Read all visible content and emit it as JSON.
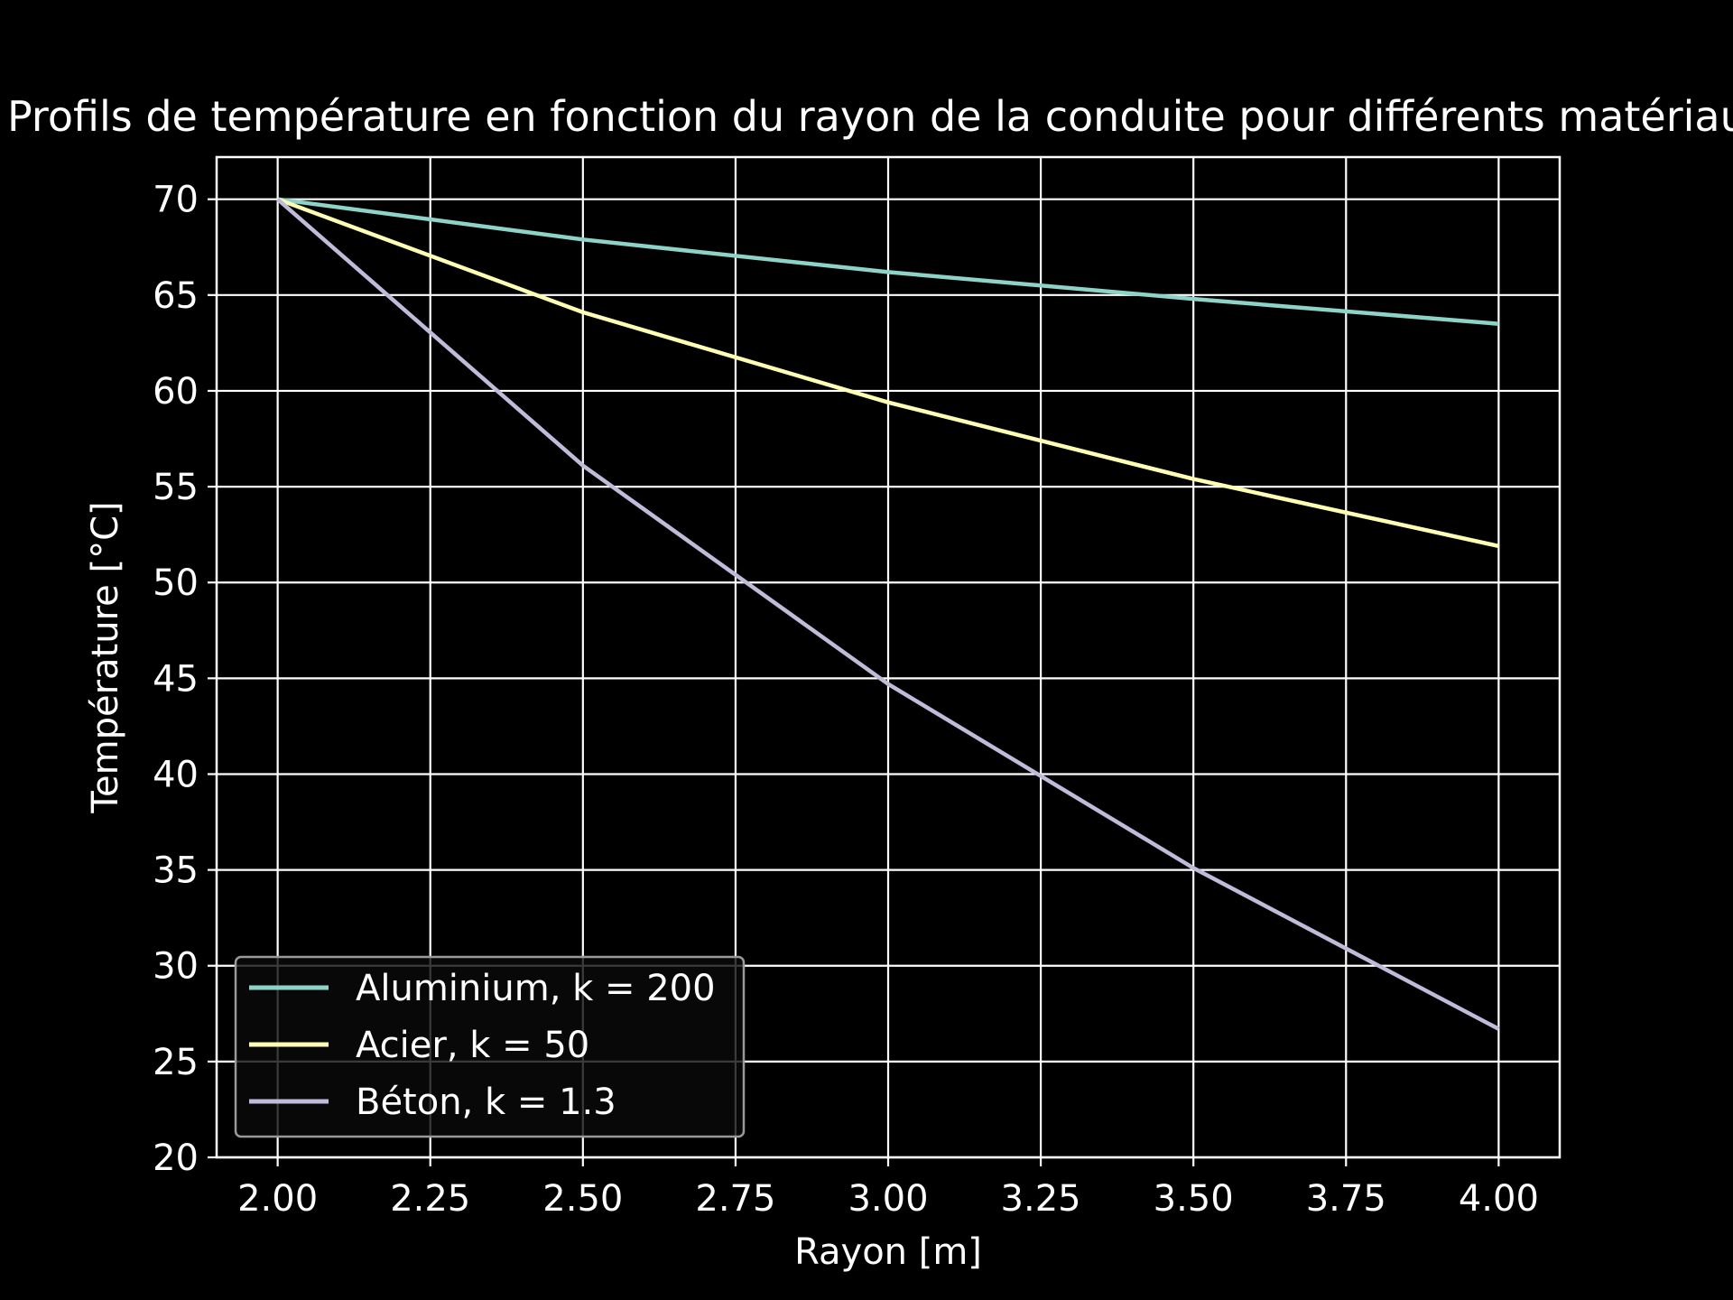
{
  "chart_data": {
    "type": "line",
    "title": "Profils de température en fonction du rayon de la conduite pour différents matériaux",
    "xlabel": "Rayon [m]",
    "ylabel": "Température [°C]",
    "xlim": [
      1.9,
      4.1
    ],
    "ylim": [
      20,
      72.2
    ],
    "xticks": [
      "2.00",
      "2.25",
      "2.50",
      "2.75",
      "3.00",
      "3.25",
      "3.50",
      "3.75",
      "4.00"
    ],
    "yticks": [
      "20",
      "25",
      "30",
      "35",
      "40",
      "45",
      "50",
      "55",
      "60",
      "65",
      "70"
    ],
    "grid": true,
    "legend_position": "lower left",
    "background": "#000000",
    "foreground": "#ffffff",
    "x": [
      2.0,
      2.5,
      3.0,
      3.5,
      4.0
    ],
    "series": [
      {
        "name": "Aluminium, k = 200",
        "color": "#8dd3c7",
        "values": [
          70.0,
          67.9,
          66.2,
          64.8,
          63.5
        ]
      },
      {
        "name": "Acier, k = 50",
        "color": "#feffb3",
        "values": [
          70.0,
          64.1,
          59.4,
          55.4,
          51.9
        ]
      },
      {
        "name": "Béton, k = 1.3",
        "color": "#bfbbd9",
        "values": [
          70.0,
          56.1,
          44.7,
          35.1,
          26.7
        ]
      }
    ]
  }
}
